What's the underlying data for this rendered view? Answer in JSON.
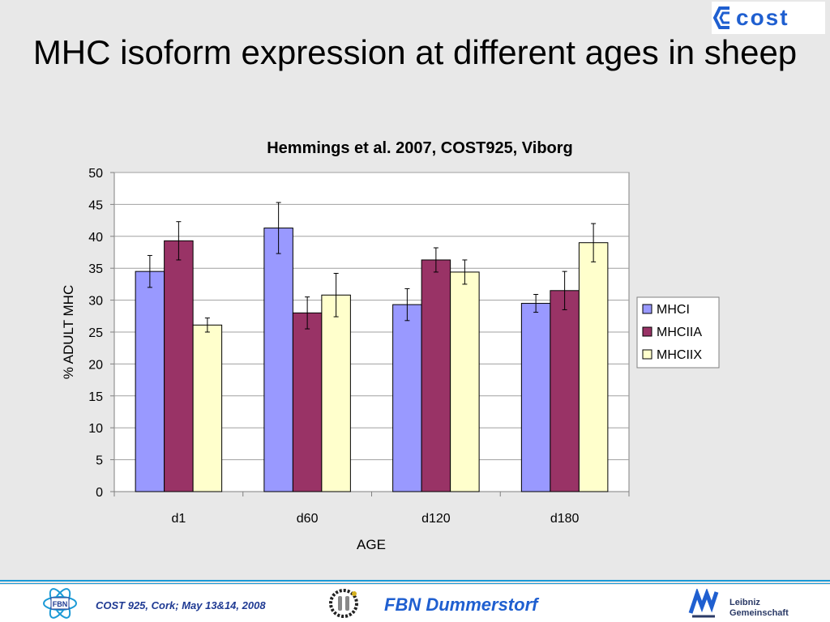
{
  "slide": {
    "title": "MHC isoform expression at different ages in sheep"
  },
  "logos": {
    "cost": "cost",
    "fbn": "FBN"
  },
  "footer": {
    "event": "COST 925, Cork; May 13&14, 2008",
    "brand": "FBN Dummerstorf",
    "leibniz_line1": "Leibniz",
    "leibniz_line2": "Gemeinschaft"
  },
  "colors": {
    "background": "#e8e8e8",
    "footer_rule": "#1c9ad6"
  },
  "chart_data": {
    "type": "bar",
    "title": "Hemmings et al. 2007, COST925, Viborg",
    "xlabel": "AGE",
    "ylabel": "% ADULT MHC",
    "ylim": [
      0,
      50
    ],
    "ytick_step": 5,
    "grid": true,
    "legend": "right",
    "categories": [
      "d1",
      "d60",
      "d120",
      "d180"
    ],
    "series": [
      {
        "name": "MHCI",
        "color": "#9999ff",
        "values": [
          34.5,
          41.3,
          29.3,
          29.5
        ],
        "errors": [
          2.5,
          4.0,
          2.5,
          1.4
        ]
      },
      {
        "name": "MHCIIA",
        "color": "#993366",
        "values": [
          39.3,
          28.0,
          36.3,
          31.5
        ],
        "errors": [
          3.0,
          2.5,
          1.9,
          3.0
        ]
      },
      {
        "name": "MHCIIX",
        "color": "#ffffcc",
        "values": [
          26.1,
          30.8,
          34.4,
          39.0
        ],
        "errors": [
          1.1,
          3.4,
          1.9,
          3.0
        ]
      }
    ]
  }
}
